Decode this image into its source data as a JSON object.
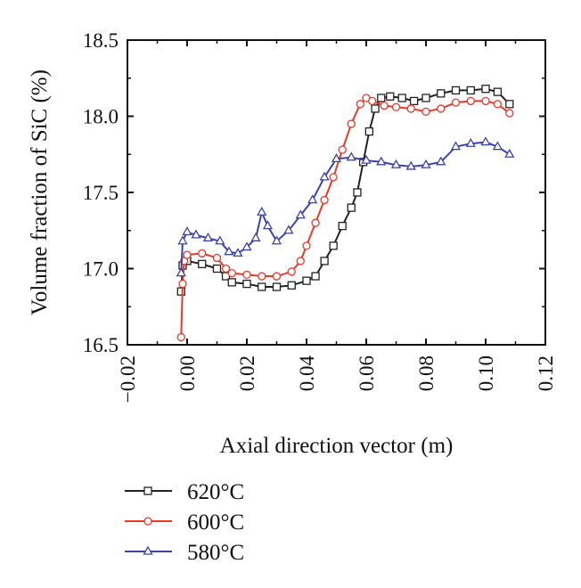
{
  "chart_data": {
    "type": "line",
    "xlabel": "Axial direction vector (m)",
    "ylabel": "Volume fraction of SiC (%)",
    "xlim": [
      -0.02,
      0.12
    ],
    "ylim": [
      16.5,
      18.5
    ],
    "xticks": [
      "−0.02",
      "0.00",
      "0.02",
      "0.04",
      "0.06",
      "0.08",
      "0.10",
      "0.12"
    ],
    "yticks": [
      "16.5",
      "17.0",
      "17.5",
      "18.0",
      "18.5"
    ],
    "grid": false,
    "legend_position": "bottom-left, below plot",
    "series": [
      {
        "name": "620°C",
        "color": "#222222",
        "marker": "square",
        "points": [
          [
            -0.002,
            16.85
          ],
          [
            -0.0015,
            17.02
          ],
          [
            0.0,
            17.05
          ],
          [
            0.005,
            17.03
          ],
          [
            0.01,
            17.0
          ],
          [
            0.013,
            16.95
          ],
          [
            0.015,
            16.91
          ],
          [
            0.02,
            16.9
          ],
          [
            0.025,
            16.88
          ],
          [
            0.03,
            16.88
          ],
          [
            0.035,
            16.89
          ],
          [
            0.04,
            16.92
          ],
          [
            0.043,
            16.95
          ],
          [
            0.046,
            17.05
          ],
          [
            0.049,
            17.15
          ],
          [
            0.052,
            17.28
          ],
          [
            0.055,
            17.4
          ],
          [
            0.057,
            17.5
          ],
          [
            0.059,
            17.7
          ],
          [
            0.061,
            17.9
          ],
          [
            0.063,
            18.05
          ],
          [
            0.065,
            18.12
          ],
          [
            0.068,
            18.13
          ],
          [
            0.072,
            18.12
          ],
          [
            0.076,
            18.1
          ],
          [
            0.08,
            18.12
          ],
          [
            0.085,
            18.15
          ],
          [
            0.09,
            18.17
          ],
          [
            0.095,
            18.17
          ],
          [
            0.1,
            18.18
          ],
          [
            0.104,
            18.16
          ],
          [
            0.108,
            18.08
          ]
        ]
      },
      {
        "name": "600°C",
        "color": "#e8392b",
        "marker": "circle",
        "points": [
          [
            -0.002,
            16.55
          ],
          [
            -0.0015,
            16.9
          ],
          [
            -0.001,
            17.05
          ],
          [
            0.0,
            17.09
          ],
          [
            0.005,
            17.1
          ],
          [
            0.01,
            17.07
          ],
          [
            0.013,
            17.0
          ],
          [
            0.015,
            16.97
          ],
          [
            0.02,
            16.96
          ],
          [
            0.025,
            16.95
          ],
          [
            0.03,
            16.95
          ],
          [
            0.035,
            16.98
          ],
          [
            0.038,
            17.05
          ],
          [
            0.04,
            17.15
          ],
          [
            0.043,
            17.3
          ],
          [
            0.046,
            17.45
          ],
          [
            0.049,
            17.6
          ],
          [
            0.052,
            17.78
          ],
          [
            0.055,
            17.95
          ],
          [
            0.058,
            18.08
          ],
          [
            0.06,
            18.12
          ],
          [
            0.062,
            18.1
          ],
          [
            0.066,
            18.07
          ],
          [
            0.07,
            18.06
          ],
          [
            0.075,
            18.05
          ],
          [
            0.08,
            18.03
          ],
          [
            0.085,
            18.05
          ],
          [
            0.09,
            18.09
          ],
          [
            0.095,
            18.1
          ],
          [
            0.1,
            18.1
          ],
          [
            0.104,
            18.08
          ],
          [
            0.108,
            18.02
          ]
        ]
      },
      {
        "name": "580°C",
        "color": "#3e43a6",
        "marker": "triangle",
        "points": [
          [
            -0.002,
            16.97
          ],
          [
            -0.0015,
            17.18
          ],
          [
            0.0,
            17.24
          ],
          [
            0.003,
            17.22
          ],
          [
            0.007,
            17.2
          ],
          [
            0.011,
            17.18
          ],
          [
            0.014,
            17.11
          ],
          [
            0.017,
            17.1
          ],
          [
            0.02,
            17.14
          ],
          [
            0.023,
            17.2
          ],
          [
            0.025,
            17.37
          ],
          [
            0.027,
            17.28
          ],
          [
            0.03,
            17.18
          ],
          [
            0.034,
            17.25
          ],
          [
            0.038,
            17.35
          ],
          [
            0.042,
            17.45
          ],
          [
            0.046,
            17.6
          ],
          [
            0.05,
            17.72
          ],
          [
            0.055,
            17.73
          ],
          [
            0.06,
            17.71
          ],
          [
            0.065,
            17.7
          ],
          [
            0.07,
            17.68
          ],
          [
            0.075,
            17.67
          ],
          [
            0.08,
            17.68
          ],
          [
            0.085,
            17.7
          ],
          [
            0.09,
            17.8
          ],
          [
            0.095,
            17.82
          ],
          [
            0.1,
            17.83
          ],
          [
            0.104,
            17.8
          ],
          [
            0.108,
            17.75
          ]
        ]
      }
    ]
  }
}
